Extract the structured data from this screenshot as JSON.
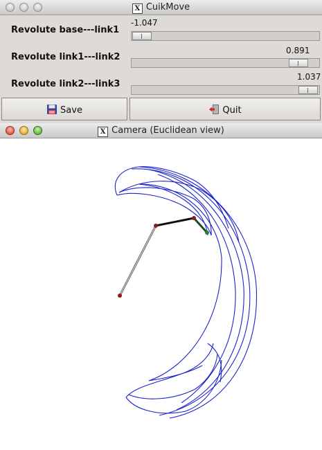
{
  "cuikmove": {
    "title": "CuikMove",
    "sliders": [
      {
        "label": "Revolute base---link1",
        "value": "-1.047",
        "fraction": 0.05
      },
      {
        "label": "Revolute link1---link2",
        "value": "0.891",
        "fraction": 0.88
      },
      {
        "label": "Revolute link2---link3",
        "value": "1.037",
        "fraction": 0.93
      }
    ],
    "buttons": {
      "save": "Save",
      "quit": "Quit"
    },
    "save_icon": "floppy-disk-icon",
    "quit_icon": "exit-door-icon"
  },
  "camera": {
    "title": "Camera (Euclidean view)"
  },
  "colors": {
    "workspace": "#1a22cc",
    "link": "#222222",
    "joint": "#8b1a1a",
    "end_effector": "#1a8b2a"
  }
}
